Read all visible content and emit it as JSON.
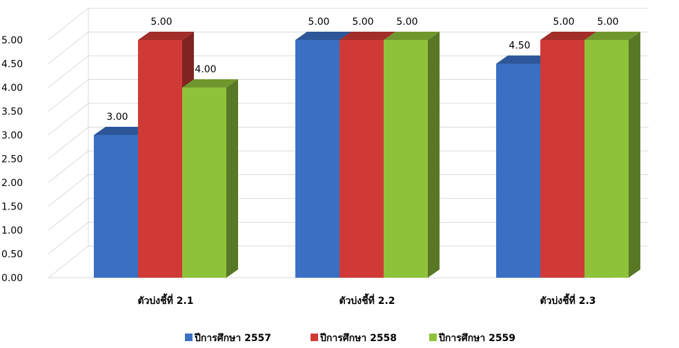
{
  "chart_data": {
    "type": "bar",
    "categories": [
      "ตัวบ่งชี้ที่ 2.1",
      "ตัวบ่งชี้ที่ 2.2",
      "ตัวบ่งชี้ที่ 2.3"
    ],
    "series": [
      {
        "name": "ปีการศึกษา 2557",
        "values": [
          3.0,
          5.0,
          4.5
        ],
        "color": "#3a6fc4"
      },
      {
        "name": "ปีการศึกษา 2558",
        "values": [
          5.0,
          5.0,
          5.0
        ],
        "color": "#d03a36"
      },
      {
        "name": "ปีการศึกษา 2559",
        "values": [
          4.0,
          5.0,
          5.0
        ],
        "color": "#8fc23b"
      }
    ],
    "ylim": [
      0,
      5
    ],
    "yticks": [
      "0.00",
      "0.50",
      "1.00",
      "1.50",
      "2.00",
      "2.50",
      "3.00",
      "3.50",
      "4.00",
      "4.50",
      "5.00"
    ],
    "data_labels": [
      [
        "3.00",
        "5.00",
        "4.50"
      ],
      [
        "5.00",
        "5.00",
        "5.00"
      ],
      [
        "4.00",
        "5.00",
        "5.00"
      ]
    ],
    "grid": true,
    "legend_position": "bottom",
    "style": "3d-column"
  }
}
